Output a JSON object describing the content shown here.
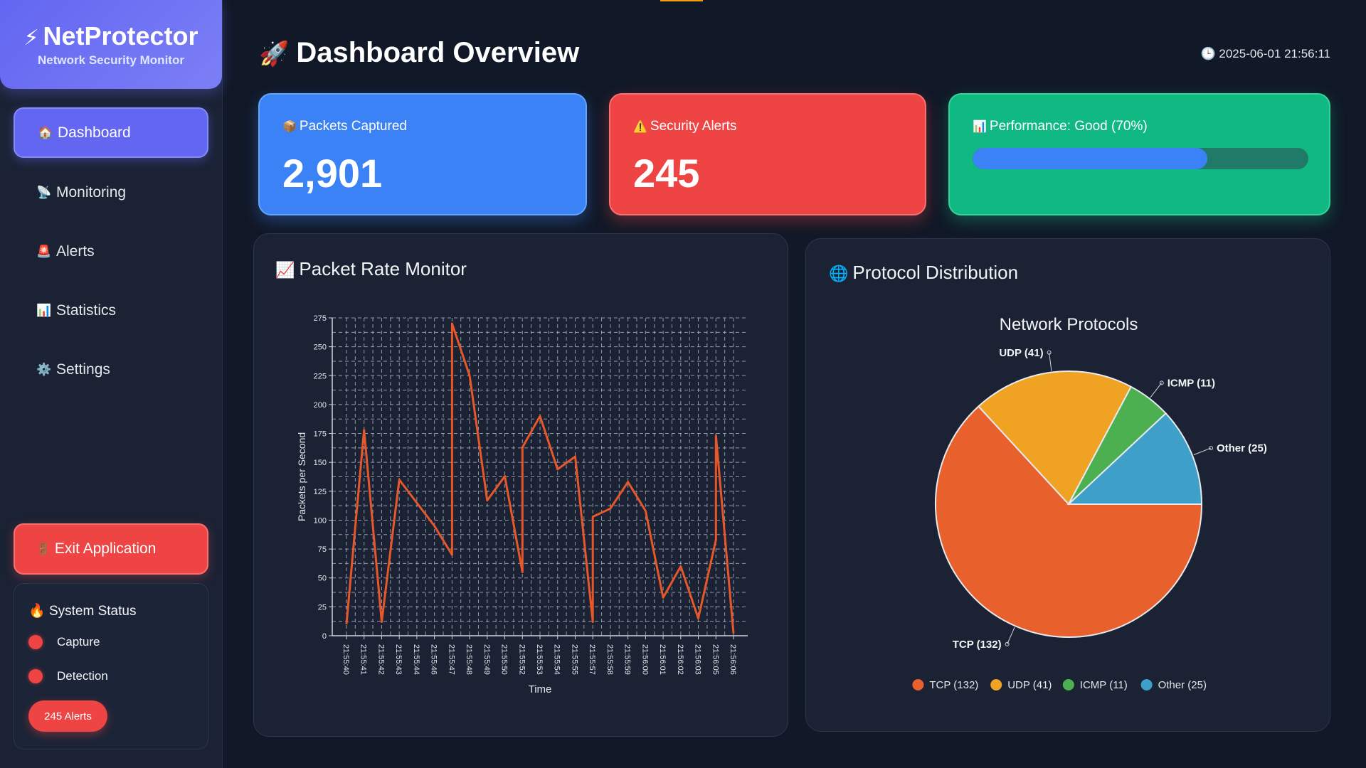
{
  "brand": {
    "icon": "⚡",
    "title": "NetProtector",
    "subtitle": "Network Security Monitor"
  },
  "nav": [
    {
      "icon": "🏠",
      "label": "Dashboard",
      "active": true
    },
    {
      "icon": "📡",
      "label": "Monitoring"
    },
    {
      "icon": "🚨",
      "label": "Alerts"
    },
    {
      "icon": "📊",
      "label": "Statistics"
    },
    {
      "icon": "⚙️",
      "label": "Settings"
    }
  ],
  "exit": {
    "icon": "🚪",
    "label": "Exit Application"
  },
  "system_status": {
    "icon": "🔥",
    "title": "System Status",
    "items": [
      {
        "label": "Capture",
        "color": "#ef4444"
      },
      {
        "label": "Detection",
        "color": "#ef4444"
      }
    ],
    "alerts_badge": "245 Alerts"
  },
  "header": {
    "icon": "🚀",
    "title": "Dashboard Overview",
    "clock_icon": "🕒",
    "datetime": "2025-06-01 21:56:11"
  },
  "cards": {
    "packets": {
      "icon": "📦",
      "label": "Packets Captured",
      "value": "2,901"
    },
    "alerts": {
      "icon": "⚠️",
      "label": "Security Alerts",
      "value": "245"
    },
    "performance": {
      "icon": "📊",
      "label": "Performance: Good (70%)",
      "progress": 0.7
    }
  },
  "packet_panel": {
    "icon": "📈",
    "title": "Packet Rate Monitor"
  },
  "protocol_panel": {
    "icon": "🌐",
    "title": "Protocol Distribution"
  },
  "chart_data": [
    {
      "type": "line",
      "title": "",
      "xlabel": "Time",
      "ylabel": "Packets per Second",
      "ylim": [
        0,
        275
      ],
      "yticks": [
        0,
        25,
        50,
        75,
        100,
        125,
        150,
        175,
        200,
        225,
        250,
        275
      ],
      "grid": true,
      "x": [
        "21:55:40",
        "21:55:41",
        "21:55:42",
        "21:55:43",
        "21:55:44",
        "21:55:46",
        "21:55:47",
        "21:55:48",
        "21:55:49",
        "21:55:50",
        "21:55:52",
        "21:55:53",
        "21:55:54",
        "21:55:55",
        "21:55:57",
        "21:55:58",
        "21:55:59",
        "21:56:00",
        "21:56:01",
        "21:56:02",
        "21:56:03",
        "21:56:05",
        "21:56:06"
      ],
      "series": [
        {
          "color": "#e8572a",
          "points": [
            [
              0,
              10
            ],
            [
              1,
              178
            ],
            [
              2,
              12
            ],
            [
              3,
              135
            ],
            [
              5,
              95
            ],
            [
              6,
              70
            ],
            [
              6,
              270
            ],
            [
              7,
              225
            ],
            [
              8,
              117
            ],
            [
              9,
              138
            ],
            [
              10,
              55
            ],
            [
              10,
              163
            ],
            [
              11,
              190
            ],
            [
              12,
              144
            ],
            [
              13,
              155
            ],
            [
              14,
              12
            ],
            [
              14,
              103
            ],
            [
              15,
              110
            ],
            [
              16,
              133
            ],
            [
              17,
              108
            ],
            [
              18,
              33
            ],
            [
              19,
              60
            ],
            [
              20,
              15
            ],
            [
              21,
              83
            ],
            [
              21,
              173
            ],
            [
              22,
              2
            ]
          ]
        }
      ]
    },
    {
      "type": "pie",
      "title": "Network Protocols",
      "slices": [
        {
          "label": "TCP (132)",
          "value": 132,
          "color": "#e8602c"
        },
        {
          "label": "UDP (41)",
          "value": 41,
          "color": "#f0a323"
        },
        {
          "label": "ICMP (11)",
          "value": 11,
          "color": "#4caf50"
        },
        {
          "label": "Other (25)",
          "value": 25,
          "color": "#3ea0c8"
        }
      ],
      "legend": "bottom"
    }
  ]
}
